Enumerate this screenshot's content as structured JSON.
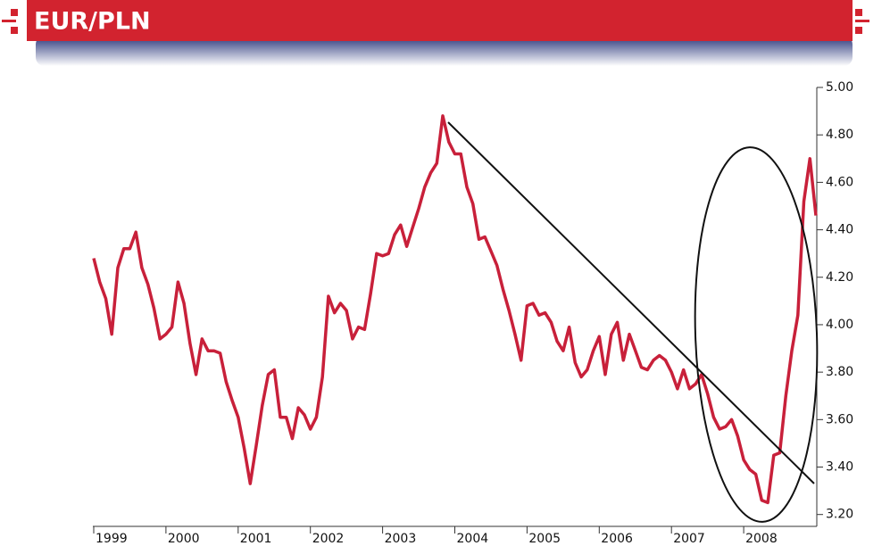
{
  "chart_data": {
    "type": "line",
    "title": "EUR/PLN",
    "categories": [
      "1999",
      null,
      null,
      null,
      null,
      null,
      null,
      null,
      null,
      null,
      null,
      null,
      "2000",
      null,
      null,
      null,
      null,
      null,
      null,
      null,
      null,
      null,
      null,
      null,
      "2001",
      null,
      null,
      null,
      null,
      null,
      null,
      null,
      null,
      null,
      null,
      null,
      "2002",
      null,
      null,
      null,
      null,
      null,
      null,
      null,
      null,
      null,
      null,
      null,
      "2003",
      null,
      null,
      null,
      null,
      null,
      null,
      null,
      null,
      null,
      null,
      null,
      "2004",
      null,
      null,
      null,
      null,
      null,
      null,
      null,
      null,
      null,
      null,
      null,
      "2005",
      null,
      null,
      null,
      null,
      null,
      null,
      null,
      null,
      null,
      null,
      null,
      "2006",
      null,
      null,
      null,
      null,
      null,
      null,
      null,
      null,
      null,
      null,
      null,
      "2007",
      null,
      null,
      null,
      null,
      null,
      null,
      null,
      null,
      null,
      null,
      null,
      "2008",
      null,
      null,
      null,
      null,
      null,
      null,
      null,
      null,
      null,
      null,
      null,
      null
    ],
    "series": [
      {
        "name": "EUR/PLN",
        "color": "#c8203a",
        "values": [
          4.28,
          4.18,
          4.11,
          3.96,
          4.24,
          4.32,
          4.32,
          4.39,
          4.24,
          4.17,
          4.07,
          3.94,
          3.96,
          3.99,
          4.18,
          4.09,
          3.92,
          3.79,
          3.94,
          3.89,
          3.89,
          3.88,
          3.76,
          3.68,
          3.61,
          3.48,
          3.33,
          3.49,
          3.66,
          3.79,
          3.81,
          3.61,
          3.61,
          3.52,
          3.65,
          3.62,
          3.56,
          3.61,
          3.78,
          4.12,
          4.05,
          4.09,
          4.06,
          3.94,
          3.99,
          3.98,
          4.13,
          4.3,
          4.29,
          4.3,
          4.38,
          4.42,
          4.33,
          4.41,
          4.49,
          4.58,
          4.64,
          4.68,
          4.88,
          4.77,
          4.72,
          4.72,
          4.58,
          4.51,
          4.36,
          4.37,
          4.31,
          4.25,
          4.15,
          4.06,
          3.96,
          3.85,
          4.08,
          4.09,
          4.04,
          4.05,
          4.01,
          3.93,
          3.89,
          3.99,
          3.84,
          3.78,
          3.81,
          3.89,
          3.95,
          3.79,
          3.96,
          4.01,
          3.85,
          3.96,
          3.89,
          3.82,
          3.81,
          3.85,
          3.87,
          3.85,
          3.8,
          3.73,
          3.81,
          3.73,
          3.75,
          3.79,
          3.71,
          3.61,
          3.56,
          3.57,
          3.6,
          3.53,
          3.43,
          3.39,
          3.37,
          3.26,
          3.25,
          3.45,
          3.46,
          3.7,
          3.89,
          4.04,
          4.52,
          4.7,
          4.46
        ]
      }
    ],
    "ylim": [
      3.15,
      5.0
    ],
    "yticks": [
      {
        "value": 3.2,
        "label": "3.20"
      },
      {
        "value": 3.4,
        "label": "3.40"
      },
      {
        "value": 3.6,
        "label": "3.60"
      },
      {
        "value": 3.8,
        "label": "3.80"
      },
      {
        "value": 4.0,
        "label": "4.00"
      },
      {
        "value": 4.2,
        "label": "4.20"
      },
      {
        "value": 4.4,
        "label": "4.40"
      },
      {
        "value": 4.6,
        "label": "4.60"
      },
      {
        "value": 4.8,
        "label": "4.80"
      },
      {
        "value": 5.0,
        "label": "5.00"
      }
    ],
    "grid": false
  }
}
